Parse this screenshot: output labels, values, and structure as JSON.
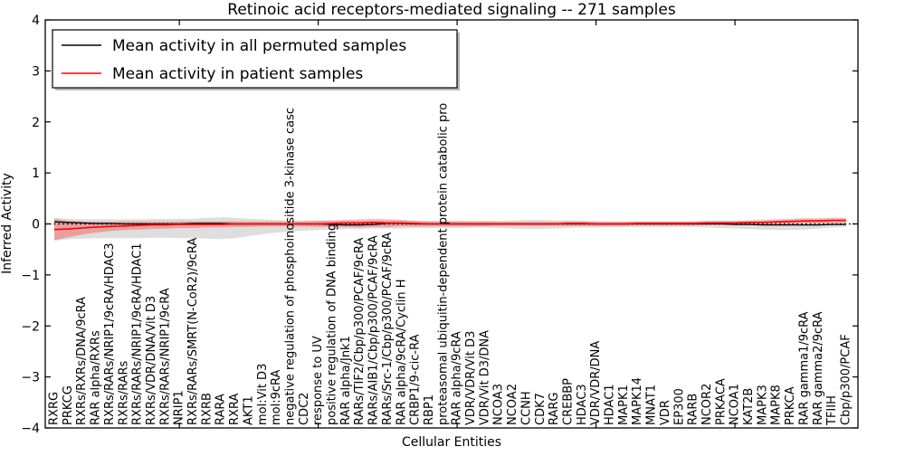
{
  "chart_data": {
    "type": "line",
    "title": "Retinoic acid receptors-mediated signaling -- 271 samples",
    "xlabel": "Cellular Entities",
    "ylabel": "Inferred Activity",
    "ylim": [
      -4,
      4
    ],
    "yticks": [
      4,
      3,
      2,
      1,
      0,
      -1,
      -2,
      -3,
      -4
    ],
    "ytick_labels": [
      "4",
      "3",
      "2",
      "1",
      "0",
      "−1",
      "−2",
      "−3",
      "−4"
    ],
    "xtick_category_positions": [
      10,
      20,
      30,
      40,
      50
    ],
    "grid": false,
    "zero_line": {
      "value": 0,
      "style": "dotted",
      "color": "#000000"
    },
    "legend_position": "upper-left",
    "legend": {
      "entries": [
        {
          "label": "Mean activity in all permuted samples",
          "color": "#000000"
        },
        {
          "label": "Mean activity in patient samples",
          "color": "#ff0000"
        }
      ]
    },
    "categories": [
      "RXRG",
      "PRKCG",
      "RXRs/RXRs/DNA/9cRA",
      "RAR alpha/RXRs",
      "RXRs/RARs/NRIP1/9cRA/HDAC3",
      "RXRs/RARs",
      "RXRs/RARs/NRIP1/9cRA/HDAC1",
      "RXRs/VDR/DNA/Vit D3",
      "RXRs/RARs/NRIP1/9cRA",
      "NRIP1",
      "RXRs/RARs/SMRT(N-CoR2)/9cRA",
      "RXRB",
      "RARA",
      "RXRA",
      "AKT1",
      "mol:Vit D3",
      "mol:9cRA",
      "negative regulation of phosphoinositide 3-kinase casc",
      "CDC2",
      "response to UV",
      "positive regulation of DNA binding",
      "RAR alpha/Jnk1",
      "RARs/TIF2/Cbp/p300/PCAF/9cRA",
      "RARs/AIB1/Cbp/p300/PCAF/9cRA",
      "RARs/Src-1/Cbp/p300/PCAF/9cRA",
      "RAR alpha/9cRA/Cyclin H",
      "CRBP1/9-cic-RA",
      "RBP1",
      "proteasomal ubiquitin-dependent protein catabolic pro",
      "RAR alpha/9cRA",
      "VDR/VDR/Vit D3",
      "VDR/Vit D3/DNA",
      "NCOA3",
      "NCOA2",
      "CCNH",
      "CDK7",
      "RARG",
      "CREBBP",
      "HDAC3",
      "VDR/VDR/DNA",
      "HDAC1",
      "MAPK1",
      "MAPK14",
      "MNAT1",
      "VDR",
      "EP300",
      "RARB",
      "NCOR2",
      "PRKACA",
      "NCOA1",
      "KAT2B",
      "MAPK3",
      "MAPK8",
      "PRKCA",
      "RAR gamma1/9cRA",
      "RAR gamma2/9cRA",
      "TFIIH",
      "Cbp/p300/PCAF"
    ],
    "series": [
      {
        "name": "Mean activity in all permuted samples",
        "color": "#000000",
        "line_width": 1.3,
        "band_color": "#000000",
        "band_opacity": 0.13,
        "values": [
          0.04,
          0.03,
          0.02,
          0.01,
          0.01,
          0.0,
          0.0,
          0.0,
          0.0,
          0.0,
          0.01,
          0.01,
          0.01,
          0.0,
          0.0,
          0.0,
          0.0,
          0.0,
          0.0,
          0.0,
          -0.01,
          -0.02,
          -0.02,
          -0.01,
          0.01,
          0.01,
          0.0,
          0.0,
          0.0,
          0.0,
          0.0,
          0.0,
          0.0,
          0.0,
          0.0,
          0.0,
          0.0,
          0.0,
          0.0,
          0.0,
          0.0,
          0.0,
          0.0,
          0.0,
          0.0,
          0.0,
          0.0,
          0.0,
          0.0,
          -0.01,
          -0.01,
          -0.02,
          -0.02,
          -0.02,
          -0.02,
          -0.02,
          -0.01,
          -0.01
        ],
        "band_upper": [
          0.12,
          0.1,
          0.09,
          0.09,
          0.09,
          0.09,
          0.09,
          0.1,
          0.1,
          0.1,
          0.1,
          0.12,
          0.13,
          0.12,
          0.1,
          0.09,
          0.08,
          0.07,
          0.07,
          0.07,
          0.06,
          0.06,
          0.06,
          0.06,
          0.07,
          0.07,
          0.06,
          0.06,
          0.06,
          0.06,
          0.06,
          0.06,
          0.06,
          0.07,
          0.08,
          0.08,
          0.07,
          0.07,
          0.06,
          0.06,
          0.05,
          0.05,
          0.05,
          0.05,
          0.05,
          0.05,
          0.05,
          0.05,
          0.05,
          0.05,
          0.05,
          0.05,
          0.06,
          0.06,
          0.06,
          0.06,
          0.05,
          0.05
        ],
        "band_lower": [
          -0.33,
          -0.3,
          -0.29,
          -0.28,
          -0.28,
          -0.28,
          -0.28,
          -0.27,
          -0.27,
          -0.28,
          -0.28,
          -0.29,
          -0.3,
          -0.28,
          -0.24,
          -0.2,
          -0.17,
          -0.15,
          -0.13,
          -0.12,
          -0.11,
          -0.1,
          -0.1,
          -0.09,
          -0.09,
          -0.09,
          -0.08,
          -0.08,
          -0.08,
          -0.08,
          -0.07,
          -0.07,
          -0.08,
          -0.09,
          -0.1,
          -0.1,
          -0.09,
          -0.08,
          -0.07,
          -0.07,
          -0.06,
          -0.06,
          -0.06,
          -0.06,
          -0.06,
          -0.06,
          -0.06,
          -0.07,
          -0.08,
          -0.09,
          -0.1,
          -0.11,
          -0.12,
          -0.12,
          -0.11,
          -0.09,
          -0.07,
          -0.06
        ]
      },
      {
        "name": "Mean activity in patient samples",
        "color": "#ff0000",
        "line_width": 1.6,
        "band_color": "#ff0000",
        "band_opacity": 0.28,
        "values": [
          -0.11,
          -0.1,
          -0.08,
          -0.06,
          -0.05,
          -0.04,
          -0.03,
          -0.02,
          -0.02,
          -0.01,
          -0.01,
          -0.01,
          -0.01,
          0.0,
          0.0,
          0.0,
          0.0,
          0.0,
          0.0,
          0.0,
          0.01,
          0.02,
          0.02,
          0.03,
          0.02,
          0.02,
          0.01,
          0.0,
          0.0,
          0.0,
          0.0,
          0.0,
          0.0,
          0.0,
          0.0,
          0.0,
          0.0,
          0.01,
          0.01,
          0.0,
          0.0,
          0.0,
          0.01,
          0.01,
          0.01,
          0.01,
          0.01,
          0.02,
          0.02,
          0.02,
          0.03,
          0.03,
          0.04,
          0.05,
          0.06,
          0.06,
          0.07,
          0.07
        ],
        "band_upper": [
          0.1,
          0.06,
          0.05,
          0.04,
          0.04,
          0.05,
          0.05,
          0.05,
          0.05,
          0.05,
          0.05,
          0.05,
          0.05,
          0.05,
          0.05,
          0.05,
          0.05,
          0.04,
          0.05,
          0.06,
          0.07,
          0.08,
          0.09,
          0.1,
          0.09,
          0.08,
          0.06,
          0.05,
          0.05,
          0.05,
          0.05,
          0.05,
          0.04,
          0.04,
          0.04,
          0.04,
          0.04,
          0.05,
          0.05,
          0.04,
          0.04,
          0.04,
          0.05,
          0.05,
          0.05,
          0.05,
          0.05,
          0.06,
          0.06,
          0.06,
          0.07,
          0.08,
          0.09,
          0.1,
          0.11,
          0.11,
          0.12,
          0.12
        ],
        "band_lower": [
          -0.32,
          -0.26,
          -0.21,
          -0.17,
          -0.14,
          -0.12,
          -0.11,
          -0.1,
          -0.09,
          -0.08,
          -0.08,
          -0.07,
          -0.07,
          -0.06,
          -0.06,
          -0.05,
          -0.05,
          -0.05,
          -0.05,
          -0.06,
          -0.06,
          -0.06,
          -0.07,
          -0.06,
          -0.06,
          -0.05,
          -0.05,
          -0.05,
          -0.05,
          -0.05,
          -0.05,
          -0.05,
          -0.04,
          -0.04,
          -0.04,
          -0.04,
          -0.04,
          -0.04,
          -0.04,
          -0.04,
          -0.04,
          -0.04,
          -0.03,
          -0.03,
          -0.03,
          -0.03,
          -0.03,
          -0.02,
          -0.02,
          -0.02,
          -0.02,
          -0.01,
          -0.01,
          0.0,
          0.01,
          0.01,
          0.02,
          0.02
        ]
      }
    ]
  }
}
